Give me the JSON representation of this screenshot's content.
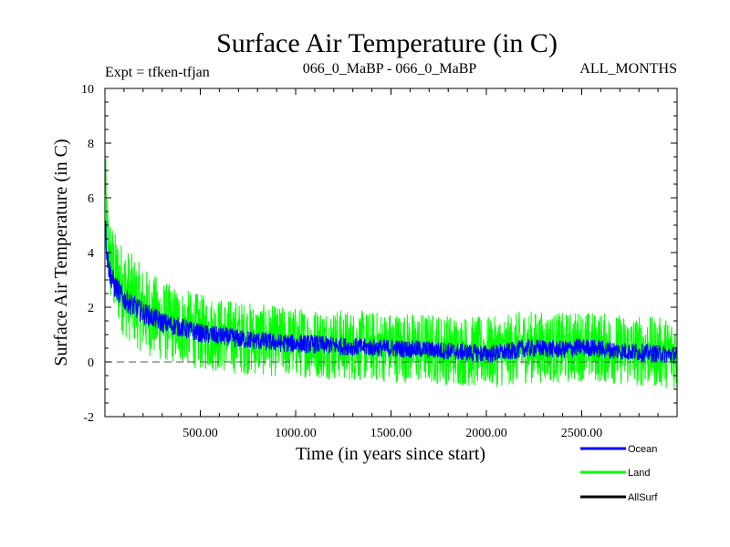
{
  "chart_data": {
    "type": "line",
    "title": "Surface Air Temperature (in C)",
    "subtitle_left": "Expt = tfken-tfjan",
    "subtitle_center": "066_0_MaBP - 066_0_MaBP",
    "subtitle_right": "ALL_MONTHS",
    "xlabel": "Time (in years since start)",
    "ylabel": "Surface Air Temperature (in C)",
    "xlim": [
      0,
      3000
    ],
    "ylim": [
      -2,
      10
    ],
    "x_ticks": [
      500,
      1000,
      1500,
      2000,
      2500
    ],
    "x_tick_labels": [
      "500.00",
      "1000.00",
      "1500.00",
      "2000.00",
      "2500.00"
    ],
    "y_ticks": [
      -2,
      0,
      2,
      4,
      6,
      8,
      10
    ],
    "y_tick_labels": [
      "-2",
      "0",
      "2",
      "4",
      "6",
      "8",
      "10"
    ],
    "zero_line": true,
    "series": [
      {
        "name": "Land",
        "color": "#00ff00",
        "x": [
          0,
          10,
          25,
          50,
          100,
          200,
          300,
          400,
          500,
          700,
          900,
          1100,
          1300,
          1500,
          1700,
          1900,
          2000,
          2100,
          2200,
          2300,
          2400,
          2500,
          2700,
          2900,
          3000
        ],
        "y": [
          7.0,
          4.8,
          3.8,
          3.2,
          2.6,
          1.9,
          1.5,
          1.3,
          1.1,
          0.9,
          0.75,
          0.7,
          0.6,
          0.55,
          0.5,
          0.4,
          0.35,
          0.4,
          0.55,
          0.55,
          0.5,
          0.6,
          0.45,
          0.35,
          0.3
        ],
        "spread": [
          1.4,
          1.5,
          1.6,
          1.6,
          1.7,
          1.6,
          1.5,
          1.4,
          1.4,
          1.35,
          1.3,
          1.3,
          1.3,
          1.3,
          1.3,
          1.3,
          1.3,
          1.3,
          1.35,
          1.3,
          1.3,
          1.3,
          1.3,
          1.3,
          1.3
        ]
      },
      {
        "name": "Ocean",
        "color": "#0000ff",
        "x": [
          0,
          10,
          25,
          50,
          100,
          200,
          300,
          400,
          500,
          700,
          900,
          1100,
          1300,
          1500,
          1700,
          1900,
          2000,
          2100,
          2200,
          2300,
          2400,
          2500,
          2700,
          2900,
          3000
        ],
        "y": [
          5.4,
          4.0,
          3.3,
          2.8,
          2.3,
          1.8,
          1.45,
          1.25,
          1.05,
          0.85,
          0.7,
          0.65,
          0.55,
          0.5,
          0.45,
          0.35,
          0.3,
          0.35,
          0.5,
          0.5,
          0.45,
          0.55,
          0.4,
          0.3,
          0.25
        ],
        "spread": [
          0.5,
          0.5,
          0.5,
          0.45,
          0.42,
          0.4,
          0.38,
          0.36,
          0.35,
          0.35,
          0.34,
          0.34,
          0.33,
          0.33,
          0.33,
          0.33,
          0.33,
          0.33,
          0.33,
          0.33,
          0.33,
          0.33,
          0.33,
          0.33,
          0.33
        ]
      },
      {
        "name": "AllSurf",
        "color": "#000000",
        "x": [],
        "y": []
      }
    ],
    "legend": [
      {
        "name": "Ocean",
        "color": "#0000ff"
      },
      {
        "name": "Land",
        "color": "#00ff00"
      },
      {
        "name": "AllSurf",
        "color": "#000000"
      }
    ],
    "legend_position": "bottom-right"
  }
}
